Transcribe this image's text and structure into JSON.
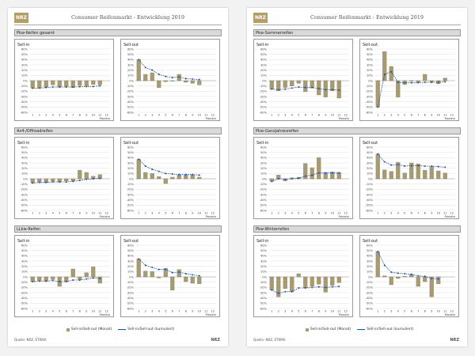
{
  "document_title": "Consumer Reifenmarkt - Entwicklung 2019",
  "logo_text": "NRZ",
  "footer_source": "Quelle: NRZ, ETRMA",
  "footer_logo": "NRZ",
  "legend": {
    "bar": "Sell-in/Sell-out (Monat)",
    "line": "Sell-in/Sell-out (kumuliert)"
  },
  "axis_unit": "Monate",
  "colors": {
    "bar": "#a89c6f",
    "line": "#1f4ea3",
    "header_bg": "#d9d9d9"
  },
  "pages": [
    {
      "sections": [
        {
          "title": "Pkw-Reifen gesamt"
        },
        {
          "title": "4x4-/Offroadreifen"
        },
        {
          "title": "LLkw-Reifen"
        }
      ]
    },
    {
      "sections": [
        {
          "title": "Pkw-Sommerreifen"
        },
        {
          "title": "Pkw-Ganzjahresreifen"
        },
        {
          "title": "Pkw-Winterreifen"
        }
      ]
    }
  ],
  "chart_data": [
    {
      "section": "Pkw-Reifen gesamt",
      "panel": "Sell-in",
      "type": "bar",
      "ylim": [
        -60,
        60
      ],
      "xlabel": "Monate",
      "x": [
        1,
        2,
        3,
        4,
        5,
        6,
        7,
        8,
        9,
        10,
        11,
        12
      ],
      "series": [
        {
          "name": "Monat",
          "values": [
            -14,
            -14,
            -12,
            -8,
            -12,
            -11,
            -13,
            -9,
            -10,
            -7,
            -8,
            null
          ]
        },
        {
          "name": "kumuliert",
          "values": [
            -14.3,
            -14,
            -13,
            -12,
            -12,
            -12,
            -12,
            -11.5,
            -11.2,
            -11,
            -10,
            null
          ]
        }
      ]
    },
    {
      "section": "Pkw-Reifen gesamt",
      "panel": "Sell-out",
      "type": "bar",
      "ylim": [
        -60,
        60
      ],
      "xlabel": "Monate",
      "x": [
        1,
        2,
        3,
        4,
        5,
        6,
        7,
        8,
        9,
        10,
        11,
        12
      ],
      "series": [
        {
          "name": "Monat",
          "values": [
            40,
            12,
            15,
            -13,
            -2,
            0,
            12,
            -3,
            -5,
            -8,
            null,
            null
          ]
        },
        {
          "name": "kumuliert",
          "values": [
            40,
            25,
            20,
            12,
            8,
            6,
            7,
            4,
            3,
            2,
            null,
            null
          ]
        }
      ]
    },
    {
      "section": "4x4-/Offroadreifen",
      "panel": "Sell-in",
      "type": "bar",
      "ylim": [
        -60,
        60
      ],
      "xlabel": "Monate",
      "x": [
        1,
        2,
        3,
        4,
        5,
        6,
        7,
        8,
        9,
        10,
        11,
        12
      ],
      "series": [
        {
          "name": "Monat",
          "values": [
            -8,
            -6,
            -7,
            -5,
            -6,
            -4,
            -4,
            16,
            12,
            5,
            8,
            null
          ]
        },
        {
          "name": "kumuliert",
          "values": [
            -8,
            -7,
            -7,
            -6,
            -6,
            -6,
            -5,
            -3,
            -1,
            0,
            1,
            null
          ]
        }
      ]
    },
    {
      "section": "4x4-/Offroadreifen",
      "panel": "Sell-out",
      "type": "bar",
      "ylim": [
        -60,
        60
      ],
      "xlabel": "Monate",
      "x": [
        1,
        2,
        3,
        4,
        5,
        6,
        7,
        8,
        9,
        10,
        11,
        12
      ],
      "series": [
        {
          "name": "Monat",
          "values": [
            37,
            12,
            10,
            4,
            -9,
            3,
            7,
            7,
            8,
            3,
            null,
            null
          ]
        },
        {
          "name": "kumuliert",
          "values": [
            37,
            24,
            18,
            14,
            10,
            9,
            8,
            8,
            8,
            7,
            null,
            null
          ]
        }
      ]
    },
    {
      "section": "LLkw-Reifen",
      "panel": "Sell-in",
      "type": "bar",
      "ylim": [
        -60,
        60
      ],
      "xlabel": "Monate",
      "x": [
        1,
        2,
        3,
        4,
        5,
        6,
        7,
        8,
        9,
        10,
        11,
        12
      ],
      "series": [
        {
          "name": "Monat",
          "values": [
            -9,
            -7,
            -8,
            -5,
            -18,
            -9,
            15,
            -5,
            8,
            19,
            -12,
            null
          ]
        },
        {
          "name": "kumuliert",
          "values": [
            -9,
            -8,
            -8,
            -7,
            -9,
            -9,
            -6,
            -6,
            -4,
            -2,
            -3,
            null
          ]
        }
      ]
    },
    {
      "section": "LLkw-Reifen",
      "panel": "Sell-out",
      "type": "bar",
      "ylim": [
        -60,
        60
      ],
      "xlabel": "Monate",
      "x": [
        1,
        2,
        3,
        4,
        5,
        6,
        7,
        8,
        9,
        10,
        11,
        12
      ],
      "series": [
        {
          "name": "Monat",
          "values": [
            34,
            11,
            10,
            -2,
            16,
            -25,
            14,
            -9,
            -12,
            -13,
            null,
            null
          ]
        },
        {
          "name": "kumuliert",
          "values": [
            34,
            22,
            18,
            14,
            14,
            8,
            9,
            6,
            4,
            2,
            null,
            null
          ]
        }
      ]
    },
    {
      "section": "Pkw-Sommerreifen",
      "panel": "Sell-in",
      "type": "bar",
      "ylim": [
        -60,
        60
      ],
      "xlabel": "Monate",
      "x": [
        1,
        2,
        3,
        4,
        5,
        6,
        7,
        8,
        9,
        10,
        11,
        12
      ],
      "series": [
        {
          "name": "Monat",
          "values": [
            -16,
            -19,
            -13,
            -10,
            -5,
            -21,
            -14,
            -27,
            -31,
            -19,
            -33,
            null
          ]
        },
        {
          "name": "kumuliert",
          "values": [
            -16,
            -17,
            -16,
            -14,
            -12,
            -13,
            -13,
            -15,
            -17,
            -17,
            -18,
            null
          ]
        }
      ]
    },
    {
      "section": "Pkw-Sommerreifen",
      "panel": "Sell-out",
      "type": "bar",
      "ylim": [
        -60,
        60
      ],
      "xlabel": "Monate",
      "x": [
        1,
        2,
        3,
        4,
        5,
        6,
        7,
        8,
        9,
        10,
        11,
        12
      ],
      "series": [
        {
          "name": "Monat",
          "values": [
            -50,
            55,
            27,
            -31,
            -7,
            -1,
            -3,
            12,
            -2,
            -6,
            5,
            null
          ]
        },
        {
          "name": "kumuliert",
          "values": [
            -50,
            12,
            17,
            -3,
            -4,
            -4,
            -4,
            -3,
            -3,
            -3,
            -2,
            null
          ]
        }
      ]
    },
    {
      "section": "Pkw-Ganzjahresreifen",
      "panel": "Sell-in",
      "type": "bar",
      "ylim": [
        -60,
        60
      ],
      "xlabel": "Monate",
      "x": [
        1,
        2,
        3,
        4,
        5,
        6,
        7,
        8,
        9,
        10,
        11,
        12
      ],
      "series": [
        {
          "name": "Monat",
          "values": [
            -5,
            7,
            -4,
            2,
            3,
            29,
            21,
            40,
            12,
            13,
            12,
            null
          ]
        },
        {
          "name": "kumuliert",
          "values": [
            -5,
            0,
            -1,
            0,
            1,
            5,
            7,
            11,
            11,
            11,
            11,
            null
          ]
        }
      ]
    },
    {
      "section": "Pkw-Ganzjahresreifen",
      "panel": "Sell-out",
      "type": "bar",
      "ylim": [
        -60,
        60
      ],
      "xlabel": "Monate",
      "x": [
        1,
        2,
        3,
        4,
        5,
        6,
        7,
        8,
        9,
        10,
        11,
        12
      ],
      "series": [
        {
          "name": "Monat",
          "values": [
            47,
            17,
            14,
            31,
            11,
            30,
            28,
            16,
            23,
            15,
            11,
            null
          ]
        },
        {
          "name": "kumuliert",
          "values": [
            47,
            32,
            26,
            27,
            24,
            25,
            25,
            24,
            24,
            23,
            22,
            null
          ]
        }
      ]
    },
    {
      "section": "Pkw-Winterreifen",
      "panel": "Sell-in",
      "type": "bar",
      "ylim": [
        -60,
        60
      ],
      "xlabel": "Monate",
      "x": [
        1,
        2,
        3,
        4,
        5,
        6,
        7,
        8,
        9,
        10,
        11,
        12
      ],
      "series": [
        {
          "name": "Monat",
          "values": [
            -25,
            -38,
            -22,
            -28,
            6,
            -21,
            -18,
            -14,
            -29,
            -16,
            -11,
            null
          ]
        },
        {
          "name": "kumuliert",
          "values": [
            -25,
            -31,
            -28,
            -28,
            -21,
            -21,
            -20,
            -19,
            -20,
            -19,
            -18,
            null
          ]
        }
      ]
    },
    {
      "section": "Pkw-Winterreifen",
      "panel": "Sell-out",
      "type": "bar",
      "ylim": [
        -60,
        60
      ],
      "xlabel": "Monate",
      "x": [
        1,
        2,
        3,
        4,
        5,
        6,
        7,
        8,
        9,
        10,
        11,
        12
      ],
      "series": [
        {
          "name": "Monat",
          "values": [
            48,
            2,
            -15,
            -3,
            1,
            4,
            -18,
            -9,
            -38,
            -13,
            null,
            null
          ]
        },
        {
          "name": "kumuliert",
          "values": [
            48,
            22,
            9,
            7,
            6,
            5,
            2,
            1,
            -3,
            -4,
            null,
            null
          ]
        }
      ]
    }
  ],
  "y_ticks": [
    "60%",
    "50%",
    "40%",
    "30%",
    "20%",
    "10%",
    "0%",
    "-10%",
    "-20%",
    "-30%",
    "-40%",
    "-50%",
    "-60%"
  ],
  "panel_labels": [
    "Sell-in",
    "Sell-out"
  ]
}
